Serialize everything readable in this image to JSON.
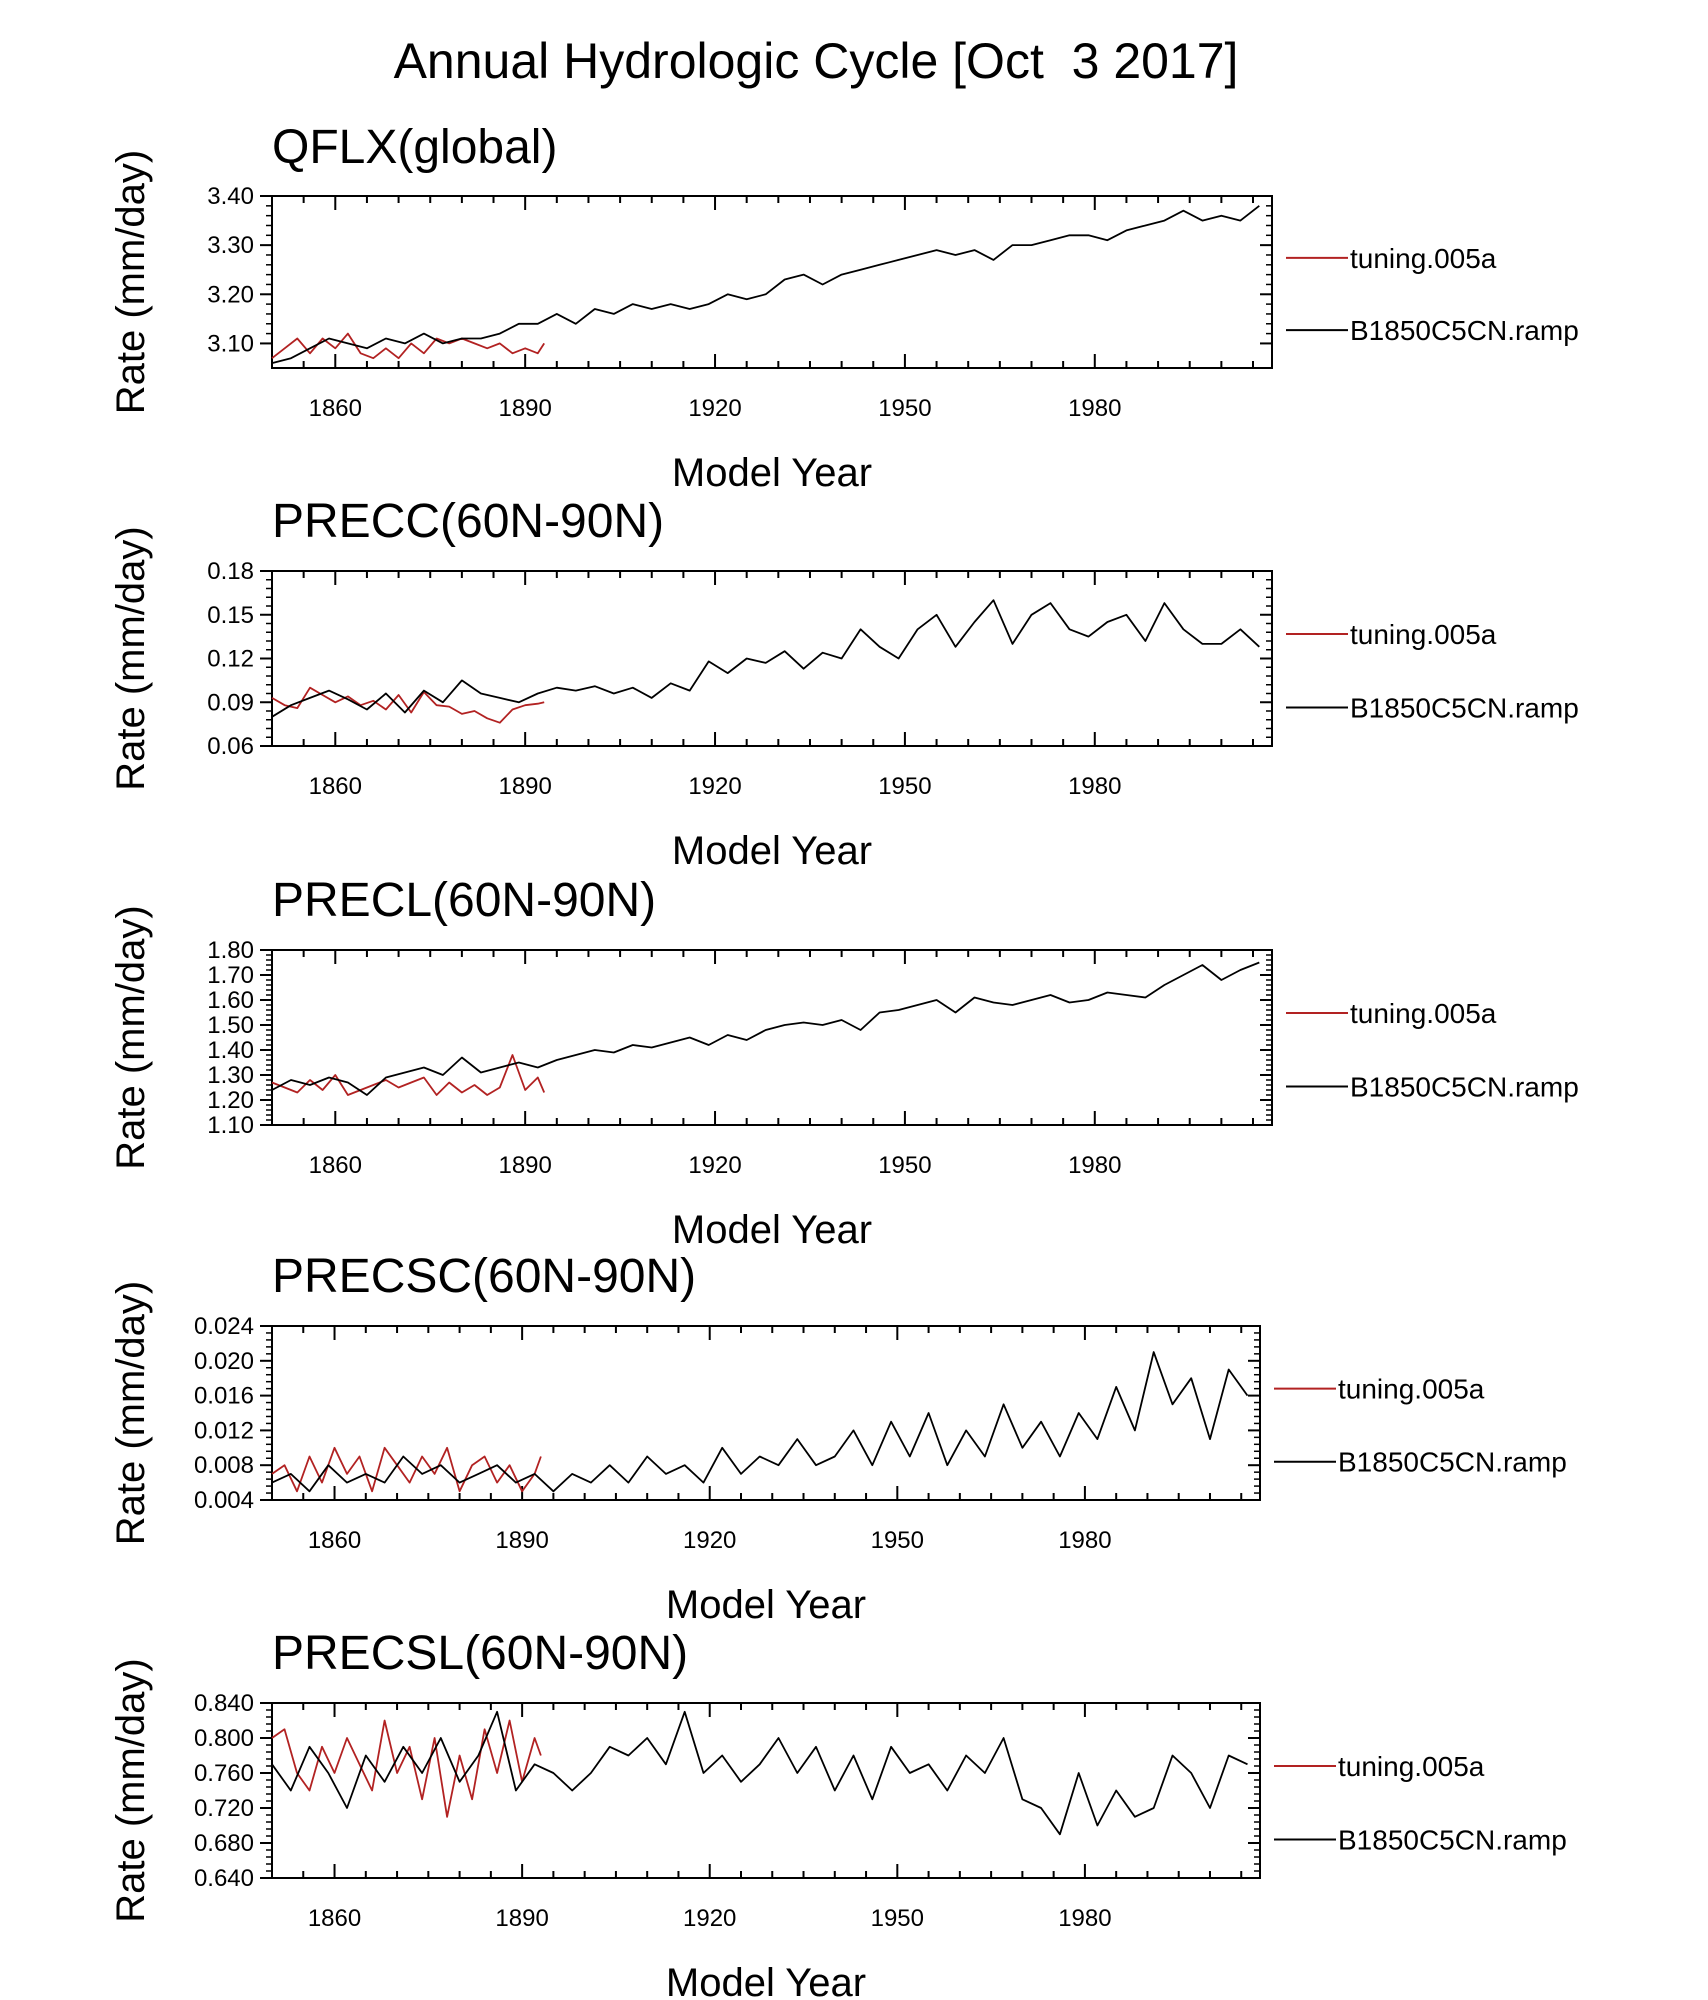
{
  "figure_title": "Annual Hydrologic Cycle [Oct  3 2017]",
  "colors": {
    "tuning": "#b22222",
    "ramp": "#000000"
  },
  "chart_data": [
    {
      "type": "line",
      "title": "QFLX(global)",
      "xlabel": "Model Year",
      "ylabel": "Rate (mm/day)",
      "xlim": [
        1850,
        2008
      ],
      "ylim": [
        3.05,
        3.4
      ],
      "yticks": [
        "3.10",
        "3.20",
        "3.30",
        "3.40"
      ],
      "xticks": [
        "1860",
        "1890",
        "1920",
        "1950",
        "1980"
      ],
      "grid": false,
      "legend": "right",
      "series": [
        {
          "name": "tuning.005a",
          "color": "#b22222",
          "x": [
            1850,
            1852,
            1854,
            1856,
            1858,
            1860,
            1862,
            1864,
            1866,
            1868,
            1870,
            1872,
            1874,
            1876,
            1878,
            1880,
            1882,
            1884,
            1886,
            1888,
            1890,
            1892,
            1893
          ],
          "y": [
            3.07,
            3.09,
            3.11,
            3.08,
            3.11,
            3.09,
            3.12,
            3.08,
            3.07,
            3.09,
            3.07,
            3.1,
            3.08,
            3.11,
            3.1,
            3.11,
            3.1,
            3.09,
            3.1,
            3.08,
            3.09,
            3.08,
            3.1
          ]
        },
        {
          "name": "B1850C5CN.ramp",
          "color": "#000000",
          "x": [
            1850,
            1853,
            1856,
            1859,
            1862,
            1865,
            1868,
            1871,
            1874,
            1877,
            1880,
            1883,
            1886,
            1889,
            1892,
            1895,
            1898,
            1901,
            1904,
            1907,
            1910,
            1913,
            1916,
            1919,
            1922,
            1925,
            1928,
            1931,
            1934,
            1937,
            1940,
            1943,
            1946,
            1949,
            1952,
            1955,
            1958,
            1961,
            1964,
            1967,
            1970,
            1973,
            1976,
            1979,
            1982,
            1985,
            1988,
            1991,
            1994,
            1997,
            2000,
            2003,
            2006
          ],
          "y": [
            3.06,
            3.07,
            3.09,
            3.11,
            3.1,
            3.09,
            3.11,
            3.1,
            3.12,
            3.1,
            3.11,
            3.11,
            3.12,
            3.14,
            3.14,
            3.16,
            3.14,
            3.17,
            3.16,
            3.18,
            3.17,
            3.18,
            3.17,
            3.18,
            3.2,
            3.19,
            3.2,
            3.23,
            3.24,
            3.22,
            3.24,
            3.25,
            3.26,
            3.27,
            3.28,
            3.29,
            3.28,
            3.29,
            3.27,
            3.3,
            3.3,
            3.31,
            3.32,
            3.32,
            3.31,
            3.33,
            3.34,
            3.35,
            3.37,
            3.35,
            3.36,
            3.35,
            3.38
          ]
        }
      ]
    },
    {
      "type": "line",
      "title": "PRECC(60N-90N)",
      "xlabel": "Model Year",
      "ylabel": "Rate (mm/day)",
      "xlim": [
        1850,
        2008
      ],
      "ylim": [
        0.06,
        0.18
      ],
      "yticks": [
        "0.06",
        "0.09",
        "0.12",
        "0.15",
        "0.18"
      ],
      "xticks": [
        "1860",
        "1890",
        "1920",
        "1950",
        "1980"
      ],
      "grid": false,
      "legend": "right",
      "series": [
        {
          "name": "tuning.005a",
          "color": "#b22222",
          "x": [
            1850,
            1852,
            1854,
            1856,
            1858,
            1860,
            1862,
            1864,
            1866,
            1868,
            1870,
            1872,
            1874,
            1876,
            1878,
            1880,
            1882,
            1884,
            1886,
            1888,
            1890,
            1892,
            1893
          ],
          "y": [
            0.093,
            0.088,
            0.086,
            0.1,
            0.095,
            0.09,
            0.094,
            0.088,
            0.091,
            0.085,
            0.095,
            0.083,
            0.097,
            0.088,
            0.087,
            0.082,
            0.084,
            0.079,
            0.076,
            0.085,
            0.088,
            0.089,
            0.09
          ]
        },
        {
          "name": "B1850C5CN.ramp",
          "color": "#000000",
          "x": [
            1850,
            1853,
            1856,
            1859,
            1862,
            1865,
            1868,
            1871,
            1874,
            1877,
            1880,
            1883,
            1886,
            1889,
            1892,
            1895,
            1898,
            1901,
            1904,
            1907,
            1910,
            1913,
            1916,
            1919,
            1922,
            1925,
            1928,
            1931,
            1934,
            1937,
            1940,
            1943,
            1946,
            1949,
            1952,
            1955,
            1958,
            1961,
            1964,
            1967,
            1970,
            1973,
            1976,
            1979,
            1982,
            1985,
            1988,
            1991,
            1994,
            1997,
            2000,
            2003,
            2006
          ],
          "y": [
            0.08,
            0.088,
            0.093,
            0.098,
            0.092,
            0.085,
            0.096,
            0.083,
            0.098,
            0.09,
            0.105,
            0.096,
            0.093,
            0.09,
            0.096,
            0.1,
            0.098,
            0.101,
            0.096,
            0.1,
            0.093,
            0.103,
            0.098,
            0.118,
            0.11,
            0.12,
            0.117,
            0.125,
            0.113,
            0.124,
            0.12,
            0.14,
            0.128,
            0.12,
            0.14,
            0.15,
            0.128,
            0.145,
            0.16,
            0.13,
            0.15,
            0.158,
            0.14,
            0.135,
            0.145,
            0.15,
            0.132,
            0.158,
            0.14,
            0.13,
            0.13,
            0.14,
            0.128
          ]
        }
      ]
    },
    {
      "type": "line",
      "title": "PRECL(60N-90N)",
      "xlabel": "Model Year",
      "ylabel": "Rate (mm/day)",
      "xlim": [
        1850,
        2008
      ],
      "ylim": [
        1.1,
        1.8
      ],
      "yticks": [
        "1.10",
        "1.20",
        "1.30",
        "1.40",
        "1.50",
        "1.60",
        "1.70",
        "1.80"
      ],
      "xticks": [
        "1860",
        "1890",
        "1920",
        "1950",
        "1980"
      ],
      "grid": false,
      "legend": "right",
      "series": [
        {
          "name": "tuning.005a",
          "color": "#b22222",
          "x": [
            1850,
            1852,
            1854,
            1856,
            1858,
            1860,
            1862,
            1864,
            1866,
            1868,
            1870,
            1872,
            1874,
            1876,
            1878,
            1880,
            1882,
            1884,
            1886,
            1888,
            1890,
            1892,
            1893
          ],
          "y": [
            1.27,
            1.25,
            1.23,
            1.28,
            1.24,
            1.3,
            1.22,
            1.24,
            1.26,
            1.28,
            1.25,
            1.27,
            1.29,
            1.22,
            1.27,
            1.23,
            1.26,
            1.22,
            1.25,
            1.38,
            1.24,
            1.29,
            1.23
          ]
        },
        {
          "name": "B1850C5CN.ramp",
          "color": "#000000",
          "x": [
            1850,
            1853,
            1856,
            1859,
            1862,
            1865,
            1868,
            1871,
            1874,
            1877,
            1880,
            1883,
            1886,
            1889,
            1892,
            1895,
            1898,
            1901,
            1904,
            1907,
            1910,
            1913,
            1916,
            1919,
            1922,
            1925,
            1928,
            1931,
            1934,
            1937,
            1940,
            1943,
            1946,
            1949,
            1952,
            1955,
            1958,
            1961,
            1964,
            1967,
            1970,
            1973,
            1976,
            1979,
            1982,
            1985,
            1988,
            1991,
            1994,
            1997,
            2000,
            2003,
            2006
          ],
          "y": [
            1.24,
            1.28,
            1.26,
            1.29,
            1.27,
            1.22,
            1.29,
            1.31,
            1.33,
            1.3,
            1.37,
            1.31,
            1.33,
            1.35,
            1.33,
            1.36,
            1.38,
            1.4,
            1.39,
            1.42,
            1.41,
            1.43,
            1.45,
            1.42,
            1.46,
            1.44,
            1.48,
            1.5,
            1.51,
            1.5,
            1.52,
            1.48,
            1.55,
            1.56,
            1.58,
            1.6,
            1.55,
            1.61,
            1.59,
            1.58,
            1.6,
            1.62,
            1.59,
            1.6,
            1.63,
            1.62,
            1.61,
            1.66,
            1.7,
            1.74,
            1.68,
            1.72,
            1.75
          ]
        }
      ]
    },
    {
      "type": "line",
      "title": "PRECSC(60N-90N)",
      "xlabel": "Model Year",
      "ylabel": "Rate (mm/day)",
      "xlim": [
        1850,
        2008
      ],
      "ylim": [
        0.004,
        0.024
      ],
      "yticks": [
        "0.004",
        "0.008",
        "0.012",
        "0.016",
        "0.020",
        "0.024"
      ],
      "xticks": [
        "1860",
        "1890",
        "1920",
        "1950",
        "1980"
      ],
      "grid": false,
      "legend": "right",
      "series": [
        {
          "name": "tuning.005a",
          "color": "#b22222",
          "x": [
            1850,
            1852,
            1854,
            1856,
            1858,
            1860,
            1862,
            1864,
            1866,
            1868,
            1870,
            1872,
            1874,
            1876,
            1878,
            1880,
            1882,
            1884,
            1886,
            1888,
            1890,
            1892,
            1893
          ],
          "y": [
            0.007,
            0.008,
            0.005,
            0.009,
            0.006,
            0.01,
            0.007,
            0.009,
            0.005,
            0.01,
            0.008,
            0.006,
            0.009,
            0.007,
            0.01,
            0.005,
            0.008,
            0.009,
            0.006,
            0.008,
            0.005,
            0.007,
            0.009
          ]
        },
        {
          "name": "B1850C5CN.ramp",
          "color": "#000000",
          "x": [
            1850,
            1853,
            1856,
            1859,
            1862,
            1865,
            1868,
            1871,
            1874,
            1877,
            1880,
            1883,
            1886,
            1889,
            1892,
            1895,
            1898,
            1901,
            1904,
            1907,
            1910,
            1913,
            1916,
            1919,
            1922,
            1925,
            1928,
            1931,
            1934,
            1937,
            1940,
            1943,
            1946,
            1949,
            1952,
            1955,
            1958,
            1961,
            1964,
            1967,
            1970,
            1973,
            1976,
            1979,
            1982,
            1985,
            1988,
            1991,
            1994,
            1997,
            2000,
            2003,
            2006
          ],
          "y": [
            0.006,
            0.007,
            0.005,
            0.008,
            0.006,
            0.007,
            0.006,
            0.009,
            0.007,
            0.008,
            0.006,
            0.007,
            0.008,
            0.006,
            0.007,
            0.005,
            0.007,
            0.006,
            0.008,
            0.006,
            0.009,
            0.007,
            0.008,
            0.006,
            0.01,
            0.007,
            0.009,
            0.008,
            0.011,
            0.008,
            0.009,
            0.012,
            0.008,
            0.013,
            0.009,
            0.014,
            0.008,
            0.012,
            0.009,
            0.015,
            0.01,
            0.013,
            0.009,
            0.014,
            0.011,
            0.017,
            0.012,
            0.021,
            0.015,
            0.018,
            0.011,
            0.019,
            0.016
          ]
        }
      ]
    },
    {
      "type": "line",
      "title": "PRECSL(60N-90N)",
      "xlabel": "Model Year",
      "ylabel": "Rate (mm/day)",
      "xlim": [
        1850,
        2008
      ],
      "ylim": [
        0.64,
        0.84
      ],
      "yticks": [
        "0.640",
        "0.680",
        "0.720",
        "0.760",
        "0.800",
        "0.840"
      ],
      "xticks": [
        "1860",
        "1890",
        "1920",
        "1950",
        "1980"
      ],
      "grid": false,
      "legend": "right",
      "series": [
        {
          "name": "tuning.005a",
          "color": "#b22222",
          "x": [
            1850,
            1852,
            1854,
            1856,
            1858,
            1860,
            1862,
            1864,
            1866,
            1868,
            1870,
            1872,
            1874,
            1876,
            1878,
            1880,
            1882,
            1884,
            1886,
            1888,
            1890,
            1892,
            1893
          ],
          "y": [
            0.8,
            0.81,
            0.76,
            0.74,
            0.79,
            0.76,
            0.8,
            0.77,
            0.74,
            0.82,
            0.76,
            0.79,
            0.73,
            0.8,
            0.71,
            0.78,
            0.73,
            0.81,
            0.76,
            0.82,
            0.75,
            0.8,
            0.78
          ]
        },
        {
          "name": "B1850C5CN.ramp",
          "color": "#000000",
          "x": [
            1850,
            1853,
            1856,
            1859,
            1862,
            1865,
            1868,
            1871,
            1874,
            1877,
            1880,
            1883,
            1886,
            1889,
            1892,
            1895,
            1898,
            1901,
            1904,
            1907,
            1910,
            1913,
            1916,
            1919,
            1922,
            1925,
            1928,
            1931,
            1934,
            1937,
            1940,
            1943,
            1946,
            1949,
            1952,
            1955,
            1958,
            1961,
            1964,
            1967,
            1970,
            1973,
            1976,
            1979,
            1982,
            1985,
            1988,
            1991,
            1994,
            1997,
            2000,
            2003,
            2006
          ],
          "y": [
            0.77,
            0.74,
            0.79,
            0.76,
            0.72,
            0.78,
            0.75,
            0.79,
            0.76,
            0.8,
            0.75,
            0.78,
            0.83,
            0.74,
            0.77,
            0.76,
            0.74,
            0.76,
            0.79,
            0.78,
            0.8,
            0.77,
            0.83,
            0.76,
            0.78,
            0.75,
            0.77,
            0.8,
            0.76,
            0.79,
            0.74,
            0.78,
            0.73,
            0.79,
            0.76,
            0.77,
            0.74,
            0.78,
            0.76,
            0.8,
            0.73,
            0.72,
            0.69,
            0.76,
            0.7,
            0.74,
            0.71,
            0.72,
            0.78,
            0.76,
            0.72,
            0.78,
            0.77
          ]
        }
      ]
    }
  ]
}
